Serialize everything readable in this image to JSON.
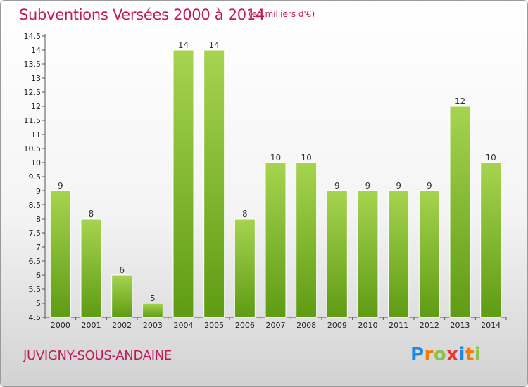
{
  "header": {
    "title": "Subventions Versées 2000 à 2014",
    "unit_note": "(en milliers d'€)"
  },
  "footer": {
    "town": "JUVIGNY-SOUS-ANDAINE",
    "logo_letters": [
      "P",
      "r",
      "o",
      "x",
      "i",
      "t",
      "i"
    ],
    "logo_colors": [
      "#1e88e5",
      "#f57c00",
      "#8bc34a",
      "#e53935",
      "#1e88e5",
      "#f57c00",
      "#8bc34a"
    ]
  },
  "colors": {
    "bar_top": "#a6d44f",
    "bar_bottom": "#5f9b14",
    "text_accent": "#c2185b"
  },
  "chart_data": {
    "type": "bar",
    "title": "Subventions Versées 2000 à 2014",
    "xlabel": "",
    "ylabel": "",
    "categories": [
      "2000",
      "2001",
      "2002",
      "2003",
      "2004",
      "2005",
      "2006",
      "2007",
      "2008",
      "2009",
      "2010",
      "2011",
      "2012",
      "2013",
      "2014"
    ],
    "values": [
      9,
      8,
      6,
      5,
      14,
      14,
      8,
      10,
      10,
      9,
      9,
      9,
      9,
      12,
      10
    ],
    "value_labels": [
      "9",
      "8",
      "6",
      "5",
      "14",
      "14",
      "8",
      "10",
      "10",
      "9",
      "9",
      "9",
      "9",
      "12",
      "10"
    ],
    "ylim": [
      4.5,
      14.5
    ],
    "yticks": [
      "4.5",
      "5",
      "5.5",
      "6",
      "6.5",
      "7",
      "7.5",
      "8",
      "8.5",
      "9",
      "9.5",
      "10",
      "10.5",
      "11",
      "11.5",
      "12",
      "12.5",
      "13",
      "13.5",
      "14",
      "14.5"
    ],
    "grid": false,
    "legend": "none"
  }
}
